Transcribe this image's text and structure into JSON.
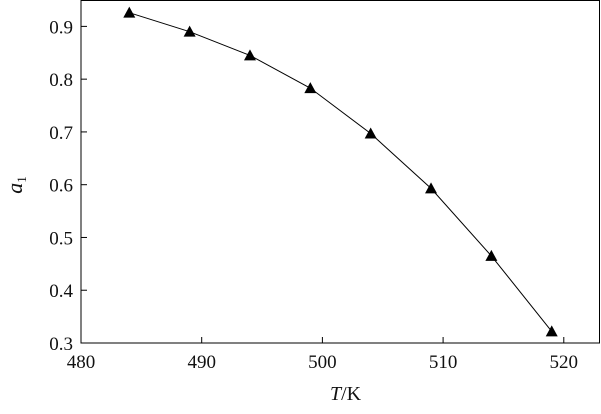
{
  "chart_data": {
    "type": "line",
    "title": "",
    "xlabel": "T/K",
    "xlabel_italic": "T",
    "xlabel_rest": "/K",
    "ylabel": "a1",
    "ylabel_main": "a",
    "ylabel_sub": "1",
    "xlim": [
      480,
      523
    ],
    "ylim": [
      0.3,
      0.95
    ],
    "xticks": [
      480,
      490,
      500,
      510,
      520
    ],
    "yticks": [
      "0.3",
      "0.4",
      "0.5",
      "0.6",
      "0.7",
      "0.8",
      "0.9"
    ],
    "grid": false,
    "marker": "triangle",
    "color": "#000000",
    "series": [
      {
        "x": [
          484,
          489,
          494,
          499,
          504,
          509,
          514,
          519
        ],
        "values": [
          0.926,
          0.89,
          0.845,
          0.783,
          0.697,
          0.593,
          0.465,
          0.322
        ]
      }
    ]
  }
}
